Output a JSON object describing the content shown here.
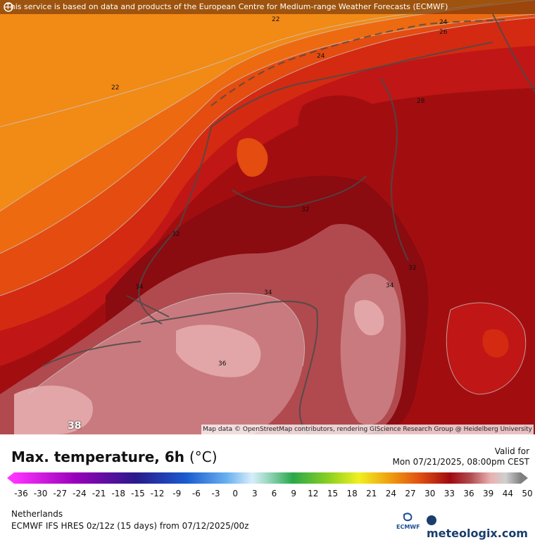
{
  "header": {
    "notice": "This service is based on data and products of the European Centre for Medium-range Weather Forecasts (ECMWF)"
  },
  "map": {
    "contour_labels": [
      "22",
      "22",
      "24",
      "24",
      "26",
      "28",
      "32",
      "34",
      "34",
      "34",
      "36",
      "32",
      "32"
    ],
    "credit": "Map data © OpenStreetMap contributors, rendering GIScience Research Group @ Heidelberg University",
    "corner_value": "38"
  },
  "legend": {
    "title": "Max. temperature, 6h",
    "unit": "(°C)",
    "valid_label": "Valid for",
    "valid_time": "Mon 07/21/2025, 08:00pm CEST",
    "ticks": [
      "-36",
      "-30",
      "-27",
      "-24",
      "-21",
      "-18",
      "-15",
      "-12",
      "-9",
      "-6",
      "-3",
      "0",
      "3",
      "6",
      "9",
      "12",
      "15",
      "18",
      "21",
      "24",
      "27",
      "30",
      "33",
      "36",
      "39",
      "44",
      "50"
    ],
    "region": "Netherlands",
    "model": "ECMWF IFS HRES 0z/12z (15 days) from  07/12/2025/00z",
    "ecmwf_logo_text": "ECMWF",
    "brand": "meteologix.com"
  },
  "colors": {
    "t22": "#f28a16",
    "t24": "#ee6a10",
    "t26": "#e44c10",
    "t28": "#d42a12",
    "t30": "#c01616",
    "t32": "#a20e10",
    "t33": "#8a0b10",
    "t34": "#b04a4e",
    "t36": "#c97a7e",
    "t38": "#e2a6a8"
  }
}
